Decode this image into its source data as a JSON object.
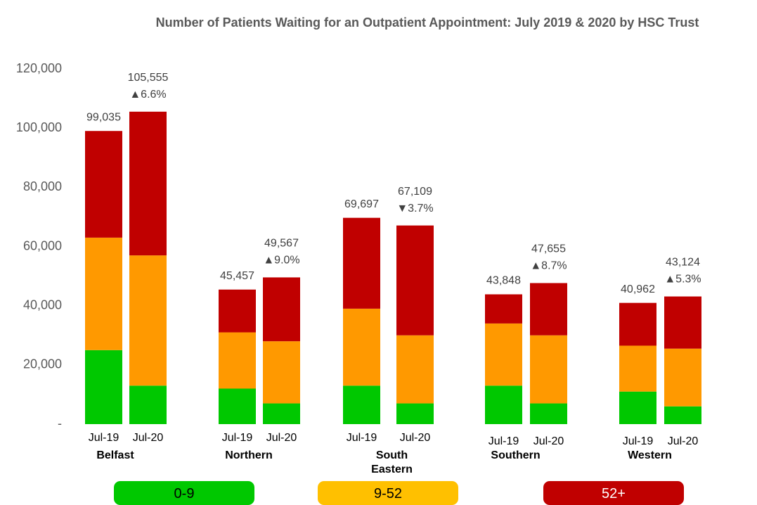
{
  "chart_data": {
    "type": "stacked_bar",
    "title": "Number of Patients Waiting for an Outpatient Appointment: July 2019 & 2020 by HSC Trust",
    "groups": [
      "Belfast",
      "Northern",
      "South Eastern",
      "Southern",
      "Western"
    ],
    "categories": [
      "Jul-19",
      "Jul-20",
      "Jul-19",
      "Jul-20",
      "Jul-19",
      "Jul-20",
      "Jul-19",
      "Jul-20",
      "Jul-19",
      "Jul-20"
    ],
    "series": [
      {
        "name": "0-9",
        "color": "#00c800",
        "legend_color": "#00c800",
        "values": [
          25000,
          13000,
          12000,
          7000,
          13000,
          7000,
          13000,
          7000,
          11000,
          6000
        ]
      },
      {
        "name": "9-52",
        "color": "#ff9900",
        "legend_color": "#ffc000",
        "values": [
          38000,
          44000,
          19000,
          21000,
          26000,
          23000,
          21000,
          23000,
          15500,
          19500
        ]
      },
      {
        "name": "52+",
        "color": "#c00000",
        "legend_color": "#c00000",
        "values": [
          36035,
          48555,
          14457,
          21567,
          30697,
          37109,
          9848,
          17655,
          14462,
          17624
        ]
      }
    ],
    "total_labels": [
      "99,035",
      "105,555",
      "45,457",
      "49,567",
      "69,697",
      "67,109",
      "43,848",
      "47,655",
      "40,962",
      "43,124"
    ],
    "change_labels": [
      null,
      "▲6.6%",
      null,
      "▲9.0%",
      null,
      "▼3.7%",
      null,
      "▲8.7%",
      null,
      "▲5.3%"
    ],
    "ylim": [
      0,
      120000
    ],
    "yticks": [
      {
        "value": 0,
        "label": "-"
      },
      {
        "value": 20000,
        "label": "20,000"
      },
      {
        "value": 40000,
        "label": "40,000"
      },
      {
        "value": 60000,
        "label": "60,000"
      },
      {
        "value": 80000,
        "label": "80,000"
      },
      {
        "value": 100000,
        "label": "100,000"
      },
      {
        "value": 120000,
        "label": "120,000"
      }
    ],
    "grid": false
  }
}
